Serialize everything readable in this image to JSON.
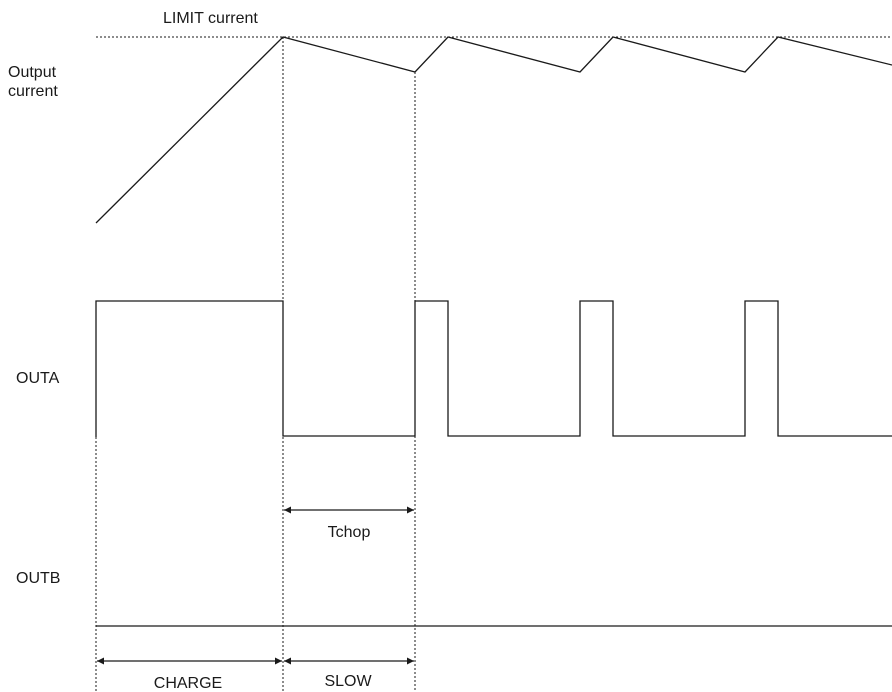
{
  "labels": {
    "limit_current": "LIMIT current",
    "output_current": [
      "Output",
      "current"
    ],
    "outa": "OUTA",
    "outb": "OUTB",
    "tchop": "Tchop",
    "charge": "CHARGE",
    "slow": "SLOW"
  }
}
